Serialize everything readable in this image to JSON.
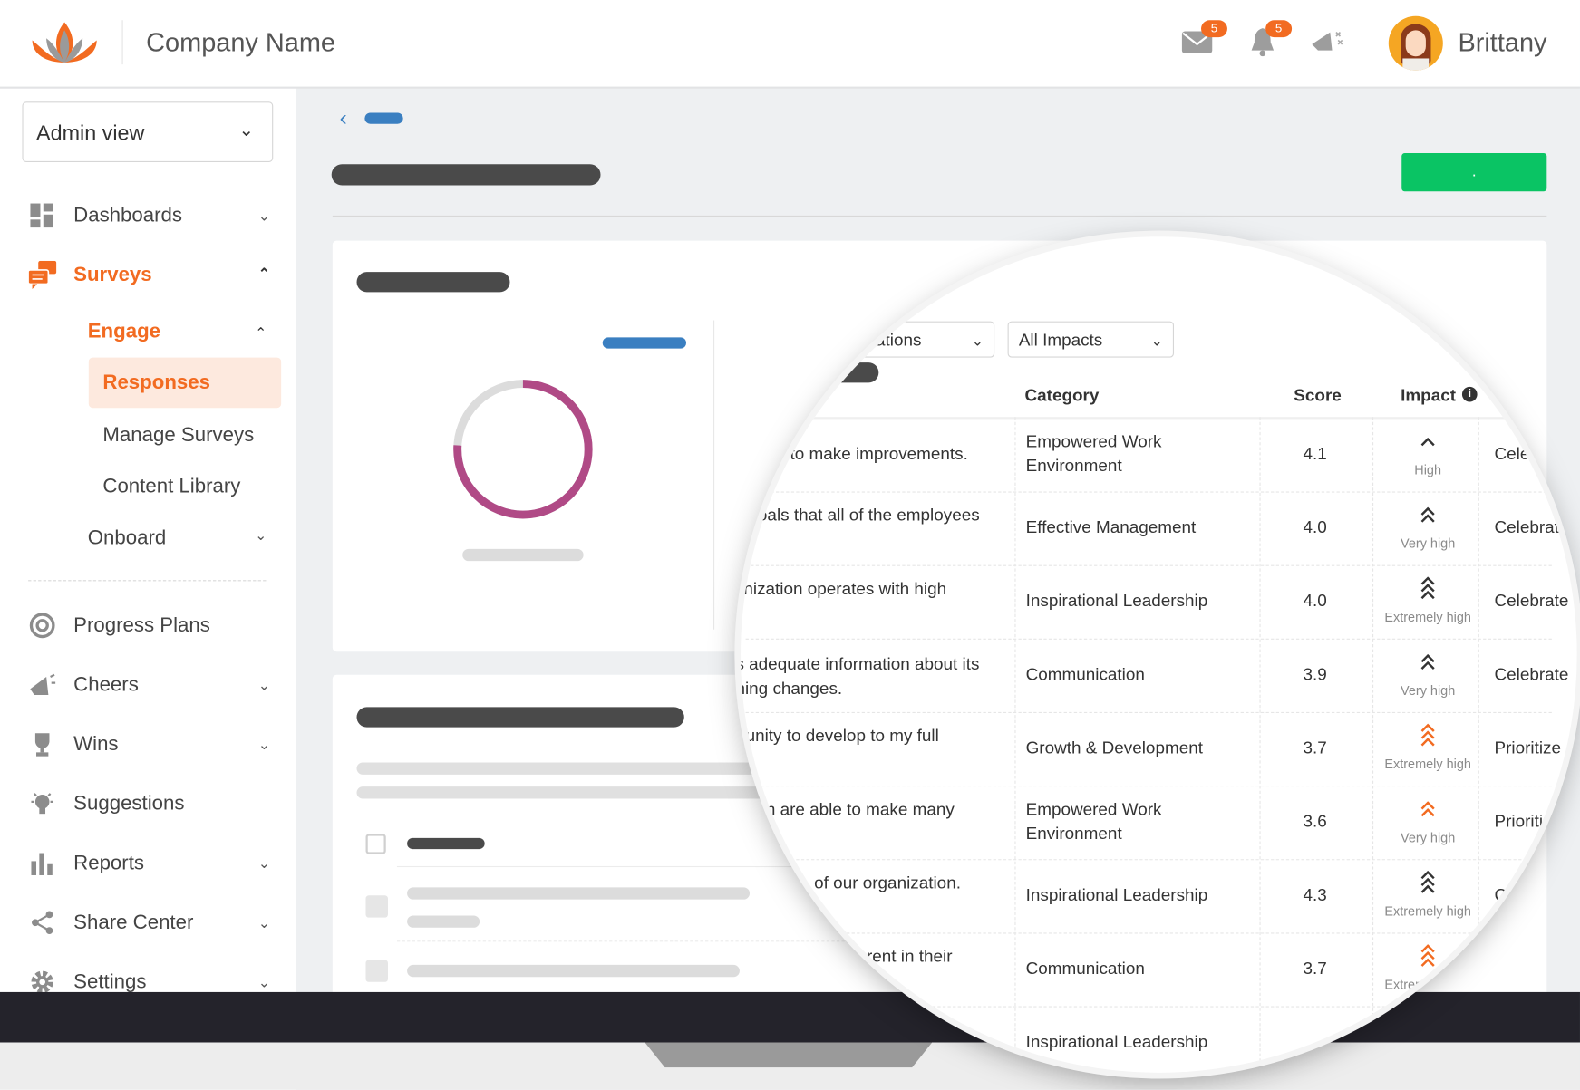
{
  "header": {
    "company_name": "Company Name",
    "mail_count": "5",
    "notification_count": "5",
    "user_name": "Brittany"
  },
  "sidebar": {
    "view_select": "Admin view",
    "items": [
      {
        "label": "Dashboards",
        "icon": "dashboard-icon"
      },
      {
        "label": "Surveys",
        "icon": "surveys-icon"
      },
      {
        "label": "Progress Plans",
        "icon": "progress-icon"
      },
      {
        "label": "Cheers",
        "icon": "megaphone-icon"
      },
      {
        "label": "Wins",
        "icon": "trophy-icon"
      },
      {
        "label": "Suggestions",
        "icon": "lightbulb-icon"
      },
      {
        "label": "Reports",
        "icon": "bar-chart-icon"
      },
      {
        "label": "Share Center",
        "icon": "share-icon"
      },
      {
        "label": "Settings",
        "icon": "gear-icon"
      }
    ],
    "surveys_sub": {
      "engage": "Engage",
      "responses": "Responses",
      "manage": "Manage Surveys",
      "library": "Content Library",
      "onboard": "Onboard"
    }
  },
  "main": {
    "primary_button": "."
  },
  "table": {
    "filter_recommendations": "ations",
    "filter_impacts": "All Impacts",
    "headers": {
      "category": "Category",
      "score": "Score",
      "impact": "Impact"
    },
    "rows": [
      {
        "question": [
          "to make improvements."
        ],
        "category": [
          "Empowered Work",
          "Environment"
        ],
        "score": "4.1",
        "impact": "High",
        "level": 1,
        "color": "#333333",
        "action": "Celebrate"
      },
      {
        "question": [
          "oals that all of the employees"
        ],
        "category": [
          "Effective Management"
        ],
        "score": "4.0",
        "impact": "Very high",
        "level": 2,
        "color": "#333333",
        "action": "Celebrate"
      },
      {
        "question": [
          "nization operates with high"
        ],
        "category": [
          "Inspirational Leadership"
        ],
        "score": "4.0",
        "impact": "Extremely high",
        "level": 3,
        "color": "#333333",
        "action": "Celebrate"
      },
      {
        "question": [
          "s adequate information about its",
          "ning changes."
        ],
        "category": [
          "Communication"
        ],
        "score": "3.9",
        "impact": "Very high",
        "level": 2,
        "color": "#333333",
        "action": "Celebrate"
      },
      {
        "question": [
          "unity to develop to my full"
        ],
        "category": [
          "Growth & Development"
        ],
        "score": "3.7",
        "impact": "Extremely high",
        "level": 3,
        "color": "#f26b21",
        "action": "Prioritize"
      },
      {
        "question": [
          "n are able to make many"
        ],
        "category": [
          "Empowered Work",
          "Environment"
        ],
        "score": "3.6",
        "impact": "Very high",
        "level": 2,
        "color": "#f26b21",
        "action": "Prioritize"
      },
      {
        "question": [
          "of our organization."
        ],
        "category": [
          "Inspirational Leadership"
        ],
        "score": "4.3",
        "impact": "Extremely high",
        "level": 3,
        "color": "#333333",
        "action": "Celebrate"
      },
      {
        "question": [
          "rent in their"
        ],
        "category": [
          "Communication"
        ],
        "score": "3.7",
        "impact": "Extremely high",
        "level": 3,
        "color": "#f26b21",
        "action": ""
      },
      {
        "question": [
          ""
        ],
        "category": [
          "Inspirational Leadership"
        ],
        "score": "",
        "impact": "",
        "level": 0,
        "color": "#333333",
        "action": ""
      }
    ]
  },
  "colors": {
    "accent": "#f26b21",
    "primary_button": "#0ac464",
    "donut": "#b04a86",
    "link": "#3a7fc1"
  }
}
